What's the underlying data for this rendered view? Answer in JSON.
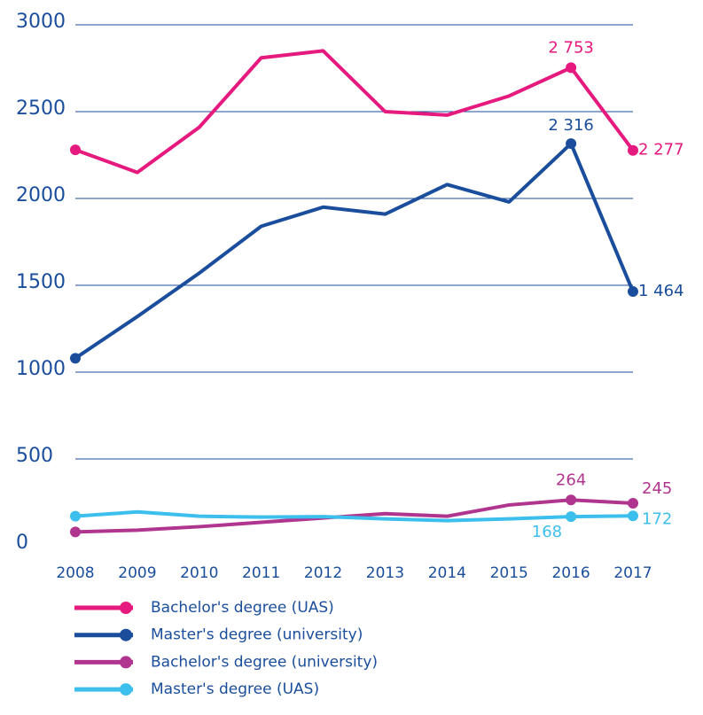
{
  "chart_data": {
    "type": "line",
    "x": [
      "2008",
      "2009",
      "2010",
      "2011",
      "2012",
      "2013",
      "2014",
      "2015",
      "2016",
      "2017"
    ],
    "series": [
      {
        "name": "Bachelor's degree (UAS)",
        "color": "#e5197e",
        "values": [
          2280,
          2150,
          2410,
          2810,
          2850,
          2500,
          2480,
          2590,
          2753,
          2277
        ],
        "value_labels": [
          null,
          null,
          null,
          null,
          null,
          null,
          null,
          null,
          "2 753",
          "2 277"
        ]
      },
      {
        "name": "Master's degree (university)",
        "color": "#1a4e9c",
        "values": [
          1080,
          1320,
          1570,
          1840,
          1950,
          1910,
          2080,
          1980,
          2316,
          1464
        ],
        "value_labels": [
          null,
          null,
          null,
          null,
          null,
          null,
          null,
          null,
          "2 316",
          "1 464"
        ]
      },
      {
        "name": "Bachelor's degree (university)",
        "color": "#b0358f",
        "values": [
          80,
          90,
          110,
          135,
          160,
          185,
          170,
          235,
          264,
          245
        ],
        "value_labels": [
          null,
          null,
          null,
          null,
          null,
          null,
          null,
          null,
          "264",
          "245"
        ]
      },
      {
        "name": "Master's degree (UAS)",
        "color": "#3dbfee",
        "values": [
          170,
          195,
          170,
          165,
          168,
          155,
          145,
          155,
          168,
          172
        ],
        "value_labels": [
          null,
          null,
          null,
          null,
          null,
          null,
          null,
          null,
          "168",
          "172"
        ]
      }
    ],
    "ylim": [
      0,
      3000
    ],
    "yticks": [
      0,
      500,
      1000,
      1500,
      2000,
      2500,
      3000
    ],
    "grid": true,
    "legend": "bottom"
  }
}
